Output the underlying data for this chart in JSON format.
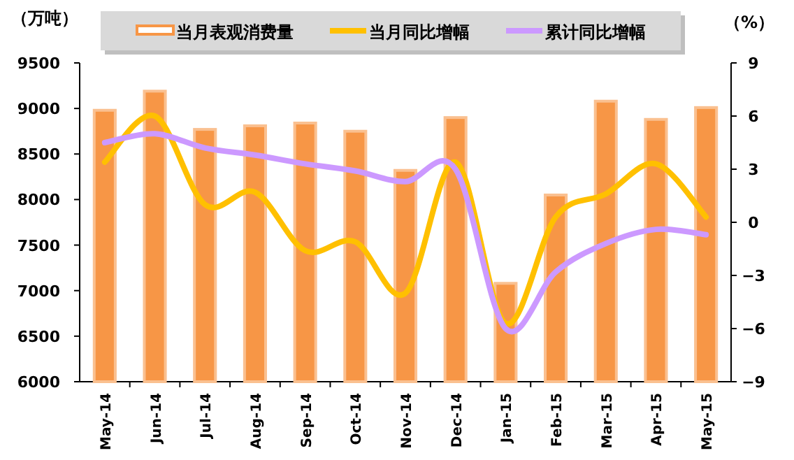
{
  "chart_data": {
    "type": "bar",
    "ylabel": "（万吨）",
    "y2label": "（%）",
    "categories": [
      "May-14",
      "Jun-14",
      "Jul-14",
      "Aug-14",
      "Sep-14",
      "Oct-14",
      "Nov-14",
      "Dec-14",
      "Jan-15",
      "Feb-15",
      "Mar-15",
      "Apr-15",
      "May-15"
    ],
    "series": [
      {
        "name": "当月表观消费量",
        "color": "#f79646",
        "values": [
          8980,
          9190,
          8770,
          8810,
          8840,
          8750,
          8320,
          8900,
          7080,
          8050,
          9080,
          8880,
          9010
        ]
      },
      {
        "name": "当月同比增幅",
        "type": "line",
        "axis": "y2",
        "color": "#ffc000",
        "values": [
          3.4,
          6.0,
          1.0,
          1.7,
          -1.6,
          -1.1,
          -4.0,
          3.4,
          -5.7,
          0.3,
          1.6,
          3.3,
          0.3
        ]
      },
      {
        "name": "累计同比增幅",
        "type": "line",
        "axis": "y2",
        "color": "#cc99ff",
        "values": [
          4.5,
          5.0,
          4.2,
          3.8,
          3.3,
          2.9,
          2.3,
          3.0,
          -6.0,
          -2.8,
          -1.2,
          -0.4,
          -0.7
        ]
      }
    ],
    "ylim": [
      6000,
      9500
    ],
    "yticks": [
      6000,
      6500,
      7000,
      7500,
      8000,
      8500,
      9000,
      9500
    ],
    "y2lim": [
      -9,
      9
    ],
    "y2ticks": [
      -9,
      -6,
      -3,
      0,
      3,
      6,
      9
    ],
    "legend": "top",
    "grid": false
  }
}
